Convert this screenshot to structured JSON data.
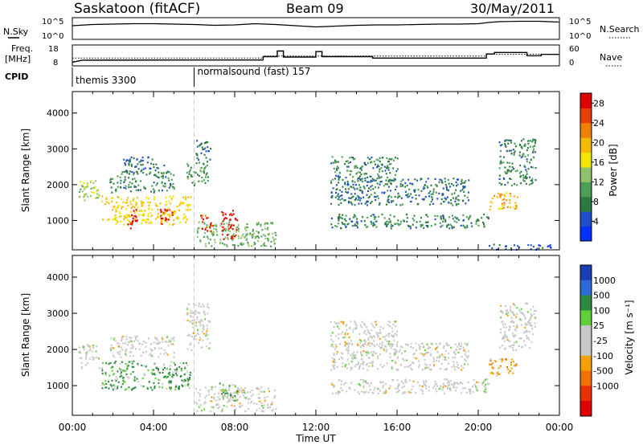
{
  "header": {
    "station": "Saskatoon (fitACF)",
    "beam": "Beam 09",
    "date": "30/May/2011"
  },
  "top_panels": {
    "nsky_label": "N.Sky",
    "nsearch_label": "N.Search",
    "freq_label_1": "Freq.",
    "freq_label_2": "[MHz]",
    "nave_label": "Nave",
    "cpid_label": "CPID",
    "nsky_ticks": [
      "10^5",
      "10^0"
    ],
    "nsearch_ticks": [
      "10^5",
      "10^0"
    ],
    "freq_ticks": [
      "18",
      "8"
    ],
    "nave_ticks": [
      "60",
      "0"
    ],
    "cpid_segments": [
      {
        "start": 0.0,
        "end": 6.0,
        "label": "themis 3300"
      },
      {
        "start": 6.0,
        "end": 24.0,
        "label": "normalsound (fast) 157"
      }
    ],
    "nsky_series": [
      [
        0,
        3.4
      ],
      [
        1,
        3.7
      ],
      [
        2,
        3.8
      ],
      [
        3,
        3.9
      ],
      [
        4,
        3.9
      ],
      [
        5,
        3.8
      ],
      [
        6,
        3.7
      ],
      [
        7,
        3.5
      ],
      [
        8,
        3.6
      ],
      [
        9,
        3.9
      ],
      [
        10,
        3.7
      ],
      [
        11,
        3.4
      ],
      [
        12,
        3.1
      ],
      [
        13,
        3.3
      ],
      [
        14,
        3.5
      ],
      [
        15,
        3.6
      ],
      [
        16,
        3.6
      ],
      [
        17,
        3.7
      ],
      [
        18,
        3.8
      ],
      [
        19,
        3.8
      ],
      [
        20,
        3.9
      ],
      [
        20.5,
        4.2
      ],
      [
        21,
        4.4
      ],
      [
        22,
        4.5
      ],
      [
        23,
        4.5
      ],
      [
        24,
        4.3
      ]
    ],
    "freq_series": [
      [
        0,
        9.2
      ],
      [
        0.5,
        10.3
      ],
      [
        6,
        10.4
      ],
      [
        9.4,
        10.4
      ],
      [
        9.4,
        12.3
      ],
      [
        10.1,
        12.3
      ],
      [
        10.1,
        15.5
      ],
      [
        10.4,
        15.5
      ],
      [
        10.4,
        12.1
      ],
      [
        12,
        12.1
      ],
      [
        12,
        15.2
      ],
      [
        12.3,
        15.2
      ],
      [
        12.3,
        12.3
      ],
      [
        14.8,
        12.3
      ],
      [
        14.8,
        11.5
      ],
      [
        20.4,
        11.5
      ],
      [
        20.4,
        13.8
      ],
      [
        20.8,
        13.8
      ],
      [
        20.8,
        14.7
      ],
      [
        22.4,
        14.7
      ],
      [
        22.4,
        12.8
      ],
      [
        23.1,
        12.8
      ],
      [
        23.1,
        13.6
      ],
      [
        24,
        13.6
      ]
    ],
    "nave_series": [
      [
        0,
        21
      ],
      [
        9.4,
        21
      ],
      [
        9.4,
        28
      ],
      [
        20.4,
        28
      ],
      [
        20.4,
        34
      ],
      [
        24,
        34
      ]
    ]
  },
  "chart_data": [
    {
      "type": "heatmap",
      "title": "",
      "ylabel": "Slant Range [km]",
      "xlabel": "Time UT",
      "xlim": [
        0,
        24
      ],
      "ylim": [
        180,
        4600
      ],
      "grid": false,
      "y_ticks": [
        1000,
        2000,
        3000,
        4000
      ],
      "x_ticks": [
        "00:00",
        "04:00",
        "08:00",
        "12:00",
        "16:00",
        "20:00",
        "00:00"
      ],
      "x_tick_hours": [
        0,
        4,
        8,
        12,
        16,
        20,
        24
      ],
      "colorbar": {
        "label": "Power [dB]",
        "ticks": [
          4,
          8,
          12,
          16,
          20,
          24,
          28
        ],
        "range": [
          0,
          30
        ],
        "colors": [
          "#0033ff",
          "#1f4fc8",
          "#2c7a3e",
          "#4a9e55",
          "#8fc26a",
          "#f2e600",
          "#f5b800",
          "#f08000",
          "#e84000",
          "#e00000"
        ]
      },
      "echo_regions": [
        {
          "t0": 0.3,
          "t1": 1.3,
          "r0": 1500,
          "r1": 2150,
          "level": 14
        },
        {
          "t0": 1.4,
          "t1": 5.8,
          "r0": 900,
          "r1": 1700,
          "level": 18
        },
        {
          "t0": 1.8,
          "t1": 5.0,
          "r0": 1800,
          "r1": 2400,
          "level": 8
        },
        {
          "t0": 2.5,
          "t1": 4.5,
          "r0": 2400,
          "r1": 2800,
          "level": 6
        },
        {
          "t0": 5.6,
          "t1": 6.7,
          "r0": 2000,
          "r1": 2700,
          "level": 10
        },
        {
          "t0": 6.0,
          "t1": 6.8,
          "r0": 2700,
          "r1": 3250,
          "level": 6
        },
        {
          "t0": 6.0,
          "t1": 10.0,
          "r0": 300,
          "r1": 1000,
          "level": 12
        },
        {
          "t0": 2.7,
          "t1": 3.2,
          "r0": 800,
          "r1": 1350,
          "level": 28
        },
        {
          "t0": 4.3,
          "t1": 4.9,
          "r0": 850,
          "r1": 1350,
          "level": 28
        },
        {
          "t0": 6.3,
          "t1": 6.9,
          "r0": 700,
          "r1": 1200,
          "level": 26
        },
        {
          "t0": 7.3,
          "t1": 8.1,
          "r0": 500,
          "r1": 1300,
          "level": 28
        },
        {
          "t0": 12.7,
          "t1": 20.5,
          "r0": 800,
          "r1": 1200,
          "level": 8
        },
        {
          "t0": 12.7,
          "t1": 19.5,
          "r0": 1450,
          "r1": 2200,
          "level": 7
        },
        {
          "t0": 12.7,
          "t1": 16.0,
          "r0": 2100,
          "r1": 2800,
          "level": 8
        },
        {
          "t0": 20.5,
          "t1": 21.9,
          "r0": 1300,
          "r1": 1800,
          "level": 20
        },
        {
          "t0": 21.0,
          "t1": 22.8,
          "r0": 2000,
          "r1": 3300,
          "level": 8
        },
        {
          "t0": 20.5,
          "t1": 23.6,
          "r0": 200,
          "r1": 350,
          "level": 4
        }
      ]
    },
    {
      "type": "heatmap",
      "title": "",
      "ylabel": "Slant Range [km]",
      "xlabel": "Time UT",
      "xlim": [
        0,
        24
      ],
      "ylim": [
        180,
        4600
      ],
      "grid": false,
      "y_ticks": [
        1000,
        2000,
        3000,
        4000
      ],
      "x_ticks": [
        "00:00",
        "04:00",
        "08:00",
        "12:00",
        "16:00",
        "20:00",
        "00:00"
      ],
      "x_tick_hours": [
        0,
        4,
        8,
        12,
        16,
        20,
        24
      ],
      "colorbar": {
        "label": "Velocity [m s⁻¹]",
        "ticks": [
          "1000",
          "500",
          "100",
          "25",
          "-25",
          "-100",
          "-500",
          "-1000"
        ],
        "colors": [
          "#1a3fb0",
          "#2f6bd4",
          "#2e8a3e",
          "#5fcf3a",
          "#c8c8c8",
          "#c8c8c8",
          "#f5a000",
          "#f07000",
          "#e83000",
          "#e00000"
        ]
      },
      "echo_regions": [
        {
          "t0": 0.3,
          "t1": 1.3,
          "r0": 1500,
          "r1": 2150,
          "level": "gray"
        },
        {
          "t0": 1.4,
          "t1": 5.8,
          "r0": 900,
          "r1": 1700,
          "level": "green"
        },
        {
          "t0": 1.8,
          "t1": 5.0,
          "r0": 1800,
          "r1": 2400,
          "level": "gray"
        },
        {
          "t0": 5.6,
          "t1": 6.8,
          "r0": 2000,
          "r1": 3300,
          "level": "gray"
        },
        {
          "t0": 6.0,
          "t1": 10.0,
          "r0": 300,
          "r1": 1000,
          "level": "gray"
        },
        {
          "t0": 7.2,
          "t1": 8.1,
          "r0": 600,
          "r1": 1100,
          "level": "green"
        },
        {
          "t0": 12.7,
          "t1": 20.5,
          "r0": 800,
          "r1": 1200,
          "level": "gray"
        },
        {
          "t0": 12.7,
          "t1": 19.5,
          "r0": 1450,
          "r1": 2200,
          "level": "gray"
        },
        {
          "t0": 12.7,
          "t1": 16.0,
          "r0": 2100,
          "r1": 2800,
          "level": "gray"
        },
        {
          "t0": 20.5,
          "t1": 21.9,
          "r0": 1300,
          "r1": 1800,
          "level": "orange"
        },
        {
          "t0": 21.0,
          "t1": 22.8,
          "r0": 2000,
          "r1": 3300,
          "level": "gray"
        }
      ]
    }
  ]
}
